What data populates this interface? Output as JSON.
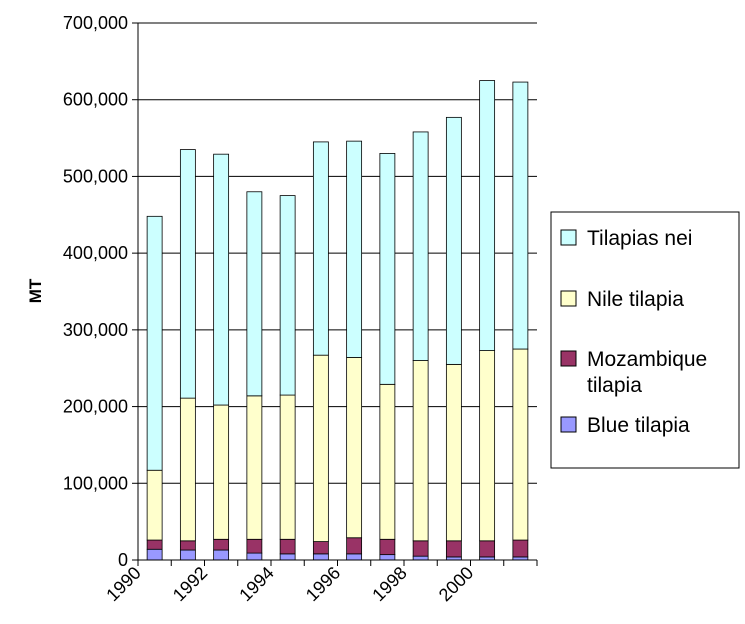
{
  "chart_data": {
    "type": "bar",
    "stacked": true,
    "title": "",
    "xlabel": "",
    "ylabel": "MT",
    "ylim": [
      0,
      700000
    ],
    "yticks": [
      0,
      100000,
      200000,
      300000,
      400000,
      500000,
      600000,
      700000
    ],
    "ytick_labels": [
      "0",
      "100,000",
      "200,000",
      "300,000",
      "400,000",
      "500,000",
      "600,000",
      "700,000"
    ],
    "categories": [
      1990,
      1991,
      1992,
      1993,
      1994,
      1995,
      1996,
      1997,
      1998,
      1999,
      2000,
      2001
    ],
    "xtick_labels": [
      "1990",
      "1992",
      "1994",
      "1996",
      "1998",
      "2000"
    ],
    "grid": "horizontal",
    "legend_position": "right",
    "series": [
      {
        "name": "Blue tilapia",
        "color": "#9999ff",
        "values": [
          14000,
          13000,
          13000,
          9000,
          8000,
          8000,
          8000,
          7000,
          5000,
          4000,
          4000,
          4000
        ]
      },
      {
        "name": "Mozambique tilapia",
        "color": "#993366",
        "values": [
          12000,
          12000,
          14000,
          18000,
          19000,
          16000,
          21000,
          20000,
          20000,
          21000,
          21000,
          22000
        ]
      },
      {
        "name": "Nile tilapia",
        "color": "#ffffcc",
        "values": [
          91000,
          186000,
          175000,
          187000,
          188000,
          243000,
          235000,
          202000,
          235000,
          230000,
          248000,
          249000
        ]
      },
      {
        "name": "Tilapias nei",
        "color": "#ccffff",
        "values": [
          331000,
          324000,
          327000,
          266000,
          260000,
          278000,
          282000,
          301000,
          298000,
          322000,
          352000,
          348000
        ]
      }
    ],
    "legend_order": [
      "Tilapias nei",
      "Nile tilapia",
      "Mozambique tilapia",
      "Blue tilapia"
    ],
    "legend_lines": {
      "Tilapias nei": [
        "Tilapias nei"
      ],
      "Nile tilapia": [
        "Nile tilapia"
      ],
      "Mozambique tilapia": [
        "Mozambique",
        "tilapia"
      ],
      "Blue tilapia": [
        "Blue tilapia"
      ]
    }
  }
}
